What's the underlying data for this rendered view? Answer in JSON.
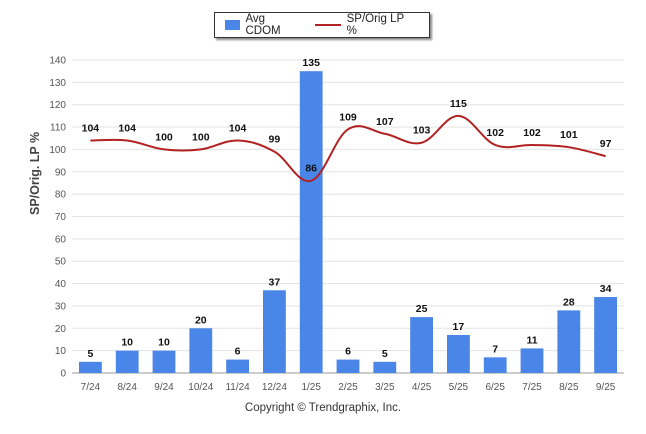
{
  "chart_data": {
    "type": "bar",
    "categories": [
      "7/24",
      "8/24",
      "9/24",
      "10/24",
      "11/24",
      "12/24",
      "1/25",
      "2/25",
      "3/25",
      "4/25",
      "5/25",
      "6/25",
      "7/25",
      "8/25",
      "9/25"
    ],
    "series": [
      {
        "name": "Avg CDOM",
        "kind": "bar",
        "color": "#4a86e8",
        "values": [
          5,
          10,
          10,
          20,
          6,
          37,
          135,
          6,
          5,
          25,
          17,
          7,
          11,
          28,
          34
        ]
      },
      {
        "name": "SP/Orig LP %",
        "kind": "line",
        "color": "#b22222",
        "values": [
          104,
          104,
          100,
          100,
          104,
          99,
          86,
          109,
          107,
          103,
          115,
          102,
          102,
          101,
          97
        ]
      }
    ],
    "ylabel": "SP/Orig. LP %",
    "ylim": [
      0,
      140
    ],
    "yticks": [
      0,
      10,
      20,
      30,
      40,
      50,
      60,
      70,
      80,
      90,
      100,
      110,
      120,
      130,
      140
    ],
    "grid": true,
    "legend_position": "top-center"
  },
  "footer": {
    "copyright": "Copyright © Trendgraphix, Inc."
  }
}
